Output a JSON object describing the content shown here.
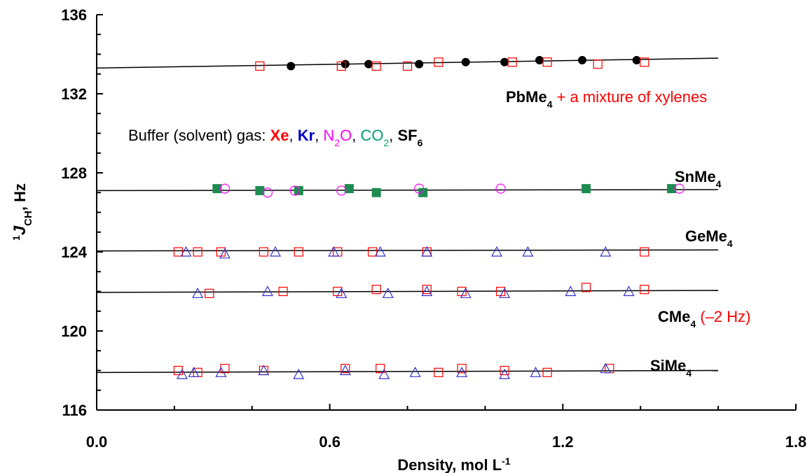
{
  "chart_data": {
    "type": "scatter",
    "xlabel": "Density, mol L",
    "xlabel_sup": "-1",
    "ylabel_sup": "1",
    "ylabel_sym": "J",
    "ylabel_sub": "CH",
    "ylabel_unit": ", Hz",
    "xlim": [
      0.0,
      1.8
    ],
    "ylim": [
      116,
      136
    ],
    "x_ticks": [
      "0.0",
      "0.6",
      "1.2",
      "1.8"
    ],
    "y_ticks": [
      "116",
      "120",
      "124",
      "128",
      "132",
      "136"
    ],
    "legend_parts": [
      {
        "text": "Buffer (solvent) gas: ",
        "color": "#000000",
        "bold": false
      },
      {
        "text": "Xe",
        "color": "#ff0000",
        "bold": true
      },
      {
        "text": ", ",
        "color": "#000000",
        "bold": false
      },
      {
        "text": "Kr",
        "color": "#0000cc",
        "bold": true
      },
      {
        "text": ", ",
        "color": "#000000",
        "bold": false
      },
      {
        "text": "N",
        "sub": "2",
        "text2": "O",
        "color": "#ff00ff",
        "bold": false
      },
      {
        "text": ", ",
        "color": "#000000",
        "bold": false
      },
      {
        "text": "CO",
        "sub": "2",
        "color": "#00a070",
        "bold": false
      },
      {
        "text": ", ",
        "color": "#000000",
        "bold": false
      },
      {
        "text": "SF",
        "sub": "6",
        "color": "#000000",
        "bold": true
      }
    ],
    "compound_labels": [
      {
        "base": "PbMe",
        "sub": "4",
        "extra": " + a mixture of xylenes",
        "extra_color": "#ff0000"
      },
      {
        "base": "SnMe",
        "sub": "4",
        "extra": "",
        "extra_color": "#000000"
      },
      {
        "base": "GeMe",
        "sub": "4",
        "extra": "",
        "extra_color": "#000000"
      },
      {
        "base": "CMe",
        "sub": "4",
        "extra": " (–2 Hz)",
        "extra_color": "#ff0000"
      },
      {
        "base": "SiMe",
        "sub": "4",
        "extra": "",
        "extra_color": "#000000"
      }
    ],
    "fit_lines": [
      {
        "x": [
          0.0,
          1.6
        ],
        "y": [
          133.3,
          133.8
        ]
      },
      {
        "x": [
          0.0,
          1.6
        ],
        "y": [
          127.1,
          127.15
        ]
      },
      {
        "x": [
          0.0,
          1.6
        ],
        "y": [
          124.05,
          124.1
        ]
      },
      {
        "x": [
          0.0,
          1.6
        ],
        "y": [
          121.95,
          122.05
        ]
      },
      {
        "x": [
          0.0,
          1.6
        ],
        "y": [
          117.9,
          118.0
        ]
      }
    ],
    "series": [
      {
        "name": "SF6",
        "marker": "circle-filled",
        "color": "#000000",
        "x": [
          0.5,
          0.64,
          0.7,
          0.83,
          0.95,
          1.05,
          1.14,
          1.25,
          1.39
        ],
        "y": [
          133.4,
          133.5,
          133.5,
          133.5,
          133.6,
          133.6,
          133.7,
          133.7,
          133.7
        ]
      },
      {
        "name": "Xe (PbMe4)",
        "marker": "square-open",
        "color": "#ff0000",
        "x": [
          0.42,
          0.63,
          0.72,
          0.8,
          0.88,
          1.07,
          1.16,
          1.29,
          1.41
        ],
        "y": [
          133.4,
          133.4,
          133.4,
          133.4,
          133.6,
          133.6,
          133.6,
          133.5,
          133.6
        ]
      },
      {
        "name": "CO2",
        "marker": "square-filled",
        "color": "#1e8c50",
        "x": [
          0.31,
          0.42,
          0.52,
          0.65,
          0.72,
          0.84,
          1.26,
          1.48
        ],
        "y": [
          127.2,
          127.1,
          127.1,
          127.2,
          127.0,
          127.0,
          127.2,
          127.2
        ]
      },
      {
        "name": "N2O",
        "marker": "circle-open",
        "color": "#ff00ff",
        "x": [
          0.33,
          0.44,
          0.51,
          0.63,
          0.83,
          1.04,
          1.5
        ],
        "y": [
          127.2,
          127.0,
          127.1,
          127.1,
          127.2,
          127.2,
          127.2
        ]
      },
      {
        "name": "Xe (GeMe4)",
        "marker": "square-open",
        "color": "#ff0000",
        "x": [
          0.21,
          0.26,
          0.32,
          0.43,
          0.52,
          0.62,
          0.71,
          0.85,
          1.41
        ],
        "y": [
          124.0,
          124.0,
          124.0,
          124.0,
          124.0,
          124.0,
          124.0,
          124.0,
          124.0
        ]
      },
      {
        "name": "Kr (GeMe4)",
        "marker": "triangle-open",
        "color": "#3333cc",
        "x": [
          0.23,
          0.33,
          0.46,
          0.61,
          0.73,
          0.85,
          1.03,
          1.11,
          1.31
        ],
        "y": [
          124.0,
          123.9,
          124.0,
          124.0,
          124.0,
          124.0,
          124.0,
          124.0,
          124.0
        ]
      },
      {
        "name": "Xe (CMe4)",
        "marker": "square-open",
        "color": "#ff0000",
        "x": [
          0.29,
          0.48,
          0.62,
          0.72,
          0.85,
          0.94,
          1.04,
          1.26,
          1.41
        ],
        "y": [
          121.9,
          122.0,
          122.0,
          122.1,
          122.1,
          122.0,
          122.0,
          122.2,
          122.1
        ]
      },
      {
        "name": "Kr (CMe4)",
        "marker": "triangle-open",
        "color": "#3333cc",
        "x": [
          0.26,
          0.44,
          0.63,
          0.75,
          0.85,
          0.95,
          1.05,
          1.22,
          1.37
        ],
        "y": [
          121.9,
          122.0,
          121.9,
          121.9,
          122.0,
          121.9,
          121.9,
          122.0,
          122.0
        ]
      },
      {
        "name": "Xe (SiMe4)",
        "marker": "square-open",
        "color": "#ff0000",
        "x": [
          0.21,
          0.26,
          0.33,
          0.43,
          0.64,
          0.73,
          0.88,
          0.94,
          1.05,
          1.16,
          1.32
        ],
        "y": [
          118.0,
          117.9,
          118.1,
          118.0,
          118.1,
          118.1,
          117.9,
          118.1,
          118.0,
          117.9,
          118.1
        ]
      },
      {
        "name": "Kr (SiMe4)",
        "marker": "triangle-open",
        "color": "#3333cc",
        "x": [
          0.22,
          0.25,
          0.32,
          0.43,
          0.52,
          0.64,
          0.74,
          0.82,
          0.94,
          1.05,
          1.13,
          1.31
        ],
        "y": [
          117.8,
          117.9,
          117.9,
          118.0,
          117.8,
          118.0,
          117.8,
          117.9,
          117.9,
          117.8,
          117.9,
          118.1
        ]
      }
    ]
  }
}
